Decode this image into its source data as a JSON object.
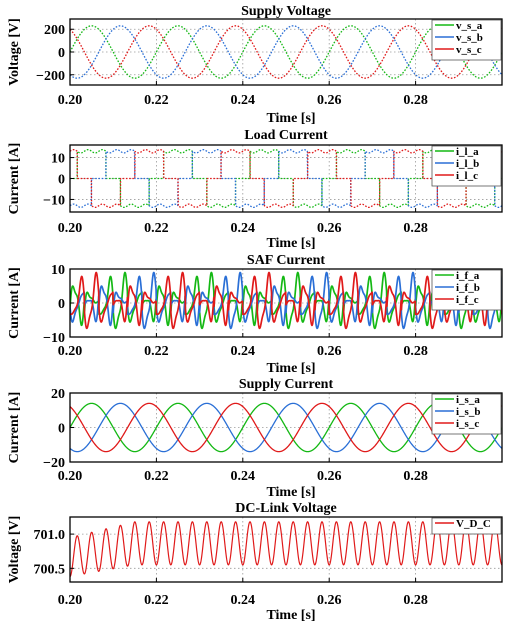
{
  "chart_data": [
    {
      "type": "line",
      "title": "Supply Voltage",
      "xlabel": "Time [s]",
      "ylabel": "Voltage [V]",
      "xlim": [
        0.2,
        0.3
      ],
      "ylim": [
        -290,
        290
      ],
      "xticks": [
        "0.20",
        "0.22",
        "0.24",
        "0.26",
        "0.28"
      ],
      "yticks": [
        "200",
        "0",
        "−200"
      ],
      "ytick_values": [
        200,
        0,
        -200
      ],
      "grid": true,
      "legend_position": "top-right",
      "waveform": {
        "kind": "sinusoid",
        "amplitude": 230,
        "frequency_hz": 50,
        "offset": 0,
        "line_style": "dotted"
      },
      "series": [
        {
          "name": "v_s_a",
          "color": "#14b814",
          "phase_deg": 0
        },
        {
          "name": "v_s_b",
          "color": "#2a6fd6",
          "phase_deg": -120
        },
        {
          "name": "v_s_c",
          "color": "#e01a1a",
          "phase_deg": 120
        }
      ]
    },
    {
      "type": "line",
      "title": "Load Current",
      "xlabel": "Time [s]",
      "ylabel": "Current [A]",
      "xlim": [
        0.2,
        0.3
      ],
      "ylim": [
        -16,
        16
      ],
      "xticks": [
        "0.20",
        "0.22",
        "0.24",
        "0.26",
        "0.28"
      ],
      "yticks": [
        "10",
        "0",
        "−10"
      ],
      "ytick_values": [
        10,
        0,
        -10
      ],
      "grid": true,
      "legend_position": "top-right",
      "waveform": {
        "kind": "six-pulse rectifier square wave",
        "amplitude": 13,
        "frequency_hz": 50,
        "offset": 0,
        "line_style": "dotted"
      },
      "series": [
        {
          "name": "i_l_a",
          "color": "#14b814",
          "phase_deg": 0
        },
        {
          "name": "i_l_b",
          "color": "#2a6fd6",
          "phase_deg": -120
        },
        {
          "name": "i_l_c",
          "color": "#e01a1a",
          "phase_deg": 120
        }
      ]
    },
    {
      "type": "line",
      "title": "SAF Current",
      "xlabel": "Time [s]",
      "ylabel": "Current [A]",
      "xlim": [
        0.2,
        0.3
      ],
      "ylim": [
        -10,
        10
      ],
      "xticks": [
        "0.20",
        "0.22",
        "0.24",
        "0.26",
        "0.28"
      ],
      "yticks": [
        "10",
        "0",
        "−10"
      ],
      "ytick_values": [
        10,
        0,
        -10
      ],
      "grid": true,
      "legend_position": "top-right",
      "waveform": {
        "kind": "harmonic compensation current",
        "peak": 8,
        "frequency_hz": 50,
        "offset": 0,
        "line_style": "solid"
      },
      "series": [
        {
          "name": "i_f_a",
          "color": "#14b814",
          "phase_deg": 0
        },
        {
          "name": "i_f_b",
          "color": "#2a6fd6",
          "phase_deg": -120
        },
        {
          "name": "i_f_c",
          "color": "#e01a1a",
          "phase_deg": 120
        }
      ]
    },
    {
      "type": "line",
      "title": "Supply Current",
      "xlabel": "Time [s]",
      "ylabel": "Current [A]",
      "xlim": [
        0.2,
        0.3
      ],
      "ylim": [
        -20,
        20
      ],
      "xticks": [
        "0.20",
        "0.22",
        "0.24",
        "0.26",
        "0.28"
      ],
      "yticks": [
        "20",
        "0",
        "−20"
      ],
      "ytick_values": [
        20,
        0,
        -20
      ],
      "grid": true,
      "legend_position": "top-right",
      "waveform": {
        "kind": "sinusoid",
        "amplitude": 14,
        "frequency_hz": 50,
        "offset": 0,
        "line_style": "solid"
      },
      "series": [
        {
          "name": "i_s_a",
          "color": "#14b814",
          "phase_deg": 0
        },
        {
          "name": "i_s_b",
          "color": "#2a6fd6",
          "phase_deg": -120
        },
        {
          "name": "i_s_c",
          "color": "#e01a1a",
          "phase_deg": 120
        }
      ]
    },
    {
      "type": "line",
      "title": "DC-Link Voltage",
      "xlabel": "Time [s]",
      "ylabel": "Voltage [V]",
      "xlim": [
        0.2,
        0.3
      ],
      "ylim": [
        700.3,
        701.25
      ],
      "xticks": [
        "0.20",
        "0.22",
        "0.24",
        "0.26",
        "0.28"
      ],
      "yticks": [
        "701.0",
        "700.5"
      ],
      "ytick_values": [
        701.0,
        700.5
      ],
      "grid": true,
      "legend_position": "top-right",
      "waveform": {
        "kind": "ripple",
        "frequency_hz": 300,
        "start_range": [
          700.38,
          700.95
        ],
        "steady_range": [
          700.55,
          701.18
        ],
        "settle_time_s": 0.215,
        "line_style": "solid"
      },
      "series": [
        {
          "name": "V_D_C",
          "color": "#e01a1a"
        }
      ]
    }
  ]
}
